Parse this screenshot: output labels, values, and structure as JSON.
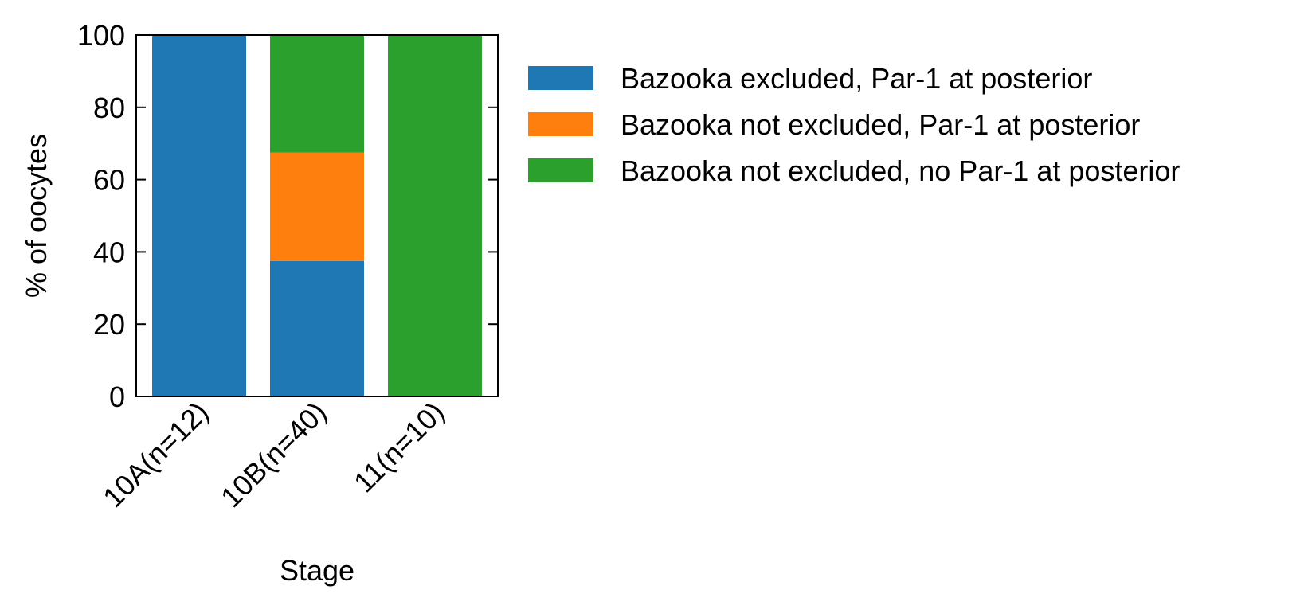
{
  "chart_data": {
    "type": "bar",
    "stacked": true,
    "categories": [
      "10A(n=12)",
      "10B(n=40)",
      "11(n=10)"
    ],
    "series": [
      {
        "name": "Bazooka excluded, Par-1 at posterior",
        "values": [
          100,
          37.5,
          0
        ],
        "color": "#1f77b4"
      },
      {
        "name": "Bazooka not excluded, Par-1 at posterior",
        "values": [
          0,
          30,
          0
        ],
        "color": "#ff7f0e"
      },
      {
        "name": "Bazooka not excluded, no Par-1 at posterior",
        "values": [
          0,
          32.5,
          100
        ],
        "color": "#2ca02c"
      }
    ],
    "xlabel": "Stage",
    "ylabel": "% of oocytes",
    "ylim": [
      0,
      100
    ],
    "yticks": [
      "0",
      "20",
      "40",
      "60",
      "80",
      "100"
    ],
    "grid": false,
    "legend_position": "right"
  }
}
